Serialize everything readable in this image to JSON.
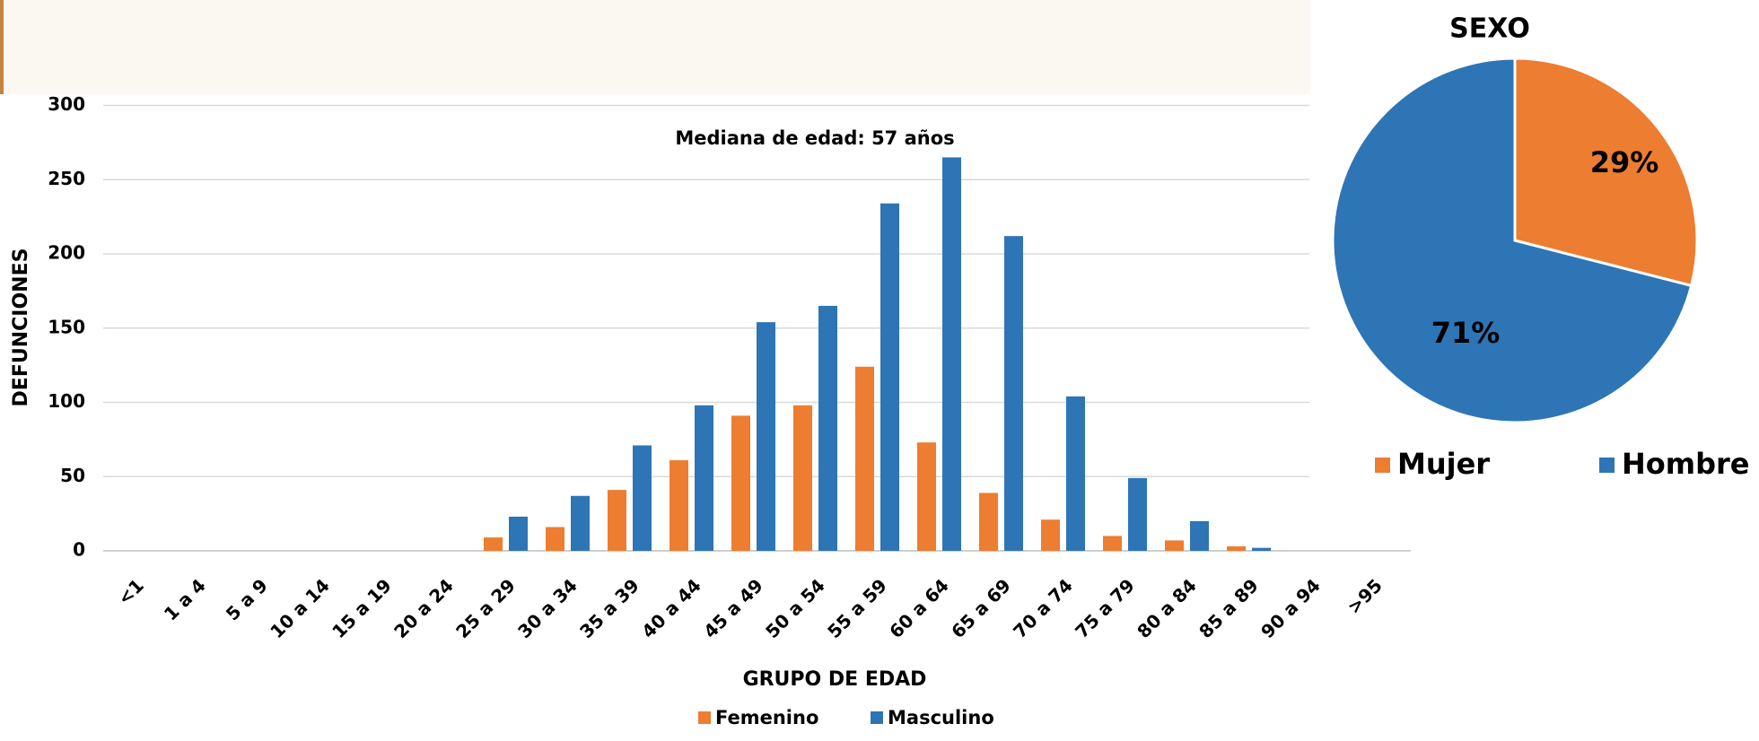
{
  "chart_data": [
    {
      "type": "bar",
      "annotation": "Mediana de edad: 57 años",
      "x_label": "GRUPO DE EDAD",
      "y_label": "DEFUNCIONES",
      "categories": [
        "<1",
        "1 a 4",
        "5 a 9",
        "10 a 14",
        "15 a 19",
        "20 a 24",
        "25 a 29",
        "30 a 34",
        "35 a 39",
        "40 a 44",
        "45 a 49",
        "50 a 54",
        "55 a 59",
        "60 a 64",
        "65 a 69",
        "70 a 74",
        "75 a 79",
        "80 a 84",
        "85 a 89",
        "90 a 94",
        ">95"
      ],
      "series": [
        {
          "name": "Femenino",
          "color": "#ED7D31",
          "values": [
            0,
            0,
            0,
            0,
            0,
            0,
            9,
            16,
            41,
            61,
            91,
            98,
            124,
            73,
            39,
            21,
            10,
            7,
            3,
            0,
            0
          ]
        },
        {
          "name": "Masculino",
          "color": "#2E75B6",
          "values": [
            0,
            0,
            0,
            0,
            0,
            0,
            23,
            37,
            71,
            98,
            154,
            165,
            234,
            265,
            212,
            104,
            49,
            20,
            2,
            0,
            0
          ]
        }
      ],
      "ylim": [
        0,
        300
      ],
      "yticks": [
        0,
        50,
        100,
        150,
        200,
        250,
        300
      ],
      "grid": true,
      "legend": "bottom"
    },
    {
      "type": "pie",
      "title": "SEXO",
      "categories": [
        "Mujer",
        "Hombre"
      ],
      "values": [
        29,
        71
      ],
      "value_labels": [
        "29%",
        "71%"
      ],
      "colors": [
        "#ED7D31",
        "#2E75B6"
      ],
      "legend": "bottom"
    }
  ]
}
